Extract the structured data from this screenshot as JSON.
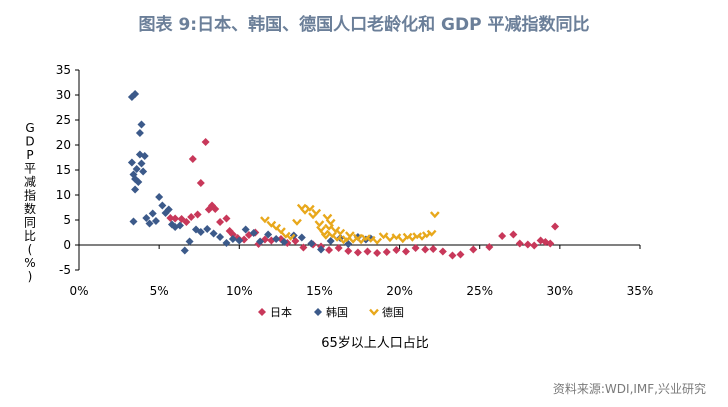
{
  "title": "图表 9:日本、韩国、德国人口老龄化和 GDP 平减指数同比",
  "source": "资料来源:WDI,IMF,兴业研究",
  "chart_data": {
    "type": "scatter",
    "xlabel": "65岁以上人口占比",
    "ylabel": "GDP平减指数同比(%)",
    "xlim": [
      0,
      35
    ],
    "ylim": [
      -5,
      35
    ],
    "x_ticks": [
      0,
      5,
      10,
      15,
      20,
      25,
      30,
      35
    ],
    "x_tick_labels": [
      "0%",
      "5%",
      "10%",
      "15%",
      "20%",
      "25%",
      "30%",
      "35%"
    ],
    "y_ticks": [
      -5,
      0,
      5,
      10,
      15,
      20,
      25,
      30,
      35
    ],
    "y_tick_labels": [
      "-5",
      "0",
      "5",
      "10",
      "15",
      "20",
      "25",
      "30",
      "35"
    ],
    "legend_position": "bottom",
    "series": [
      {
        "name": "日本",
        "color": "#c8385a",
        "marker": "diamond",
        "points": [
          [
            5.7,
            5.4
          ],
          [
            6.0,
            5.3
          ],
          [
            6.4,
            5.2
          ],
          [
            6.7,
            4.6
          ],
          [
            7.0,
            5.6
          ],
          [
            7.1,
            17.2
          ],
          [
            7.4,
            6.1
          ],
          [
            7.6,
            12.4
          ],
          [
            7.9,
            20.6
          ],
          [
            8.1,
            7.1
          ],
          [
            8.3,
            7.9
          ],
          [
            8.5,
            7.2
          ],
          [
            8.8,
            4.6
          ],
          [
            9.2,
            5.3
          ],
          [
            9.4,
            2.8
          ],
          [
            9.6,
            2.1
          ],
          [
            9.9,
            1.4
          ],
          [
            10.3,
            1.1
          ],
          [
            10.6,
            2.0
          ],
          [
            11.0,
            2.5
          ],
          [
            11.2,
            0.2
          ],
          [
            11.6,
            1.1
          ],
          [
            12.0,
            0.9
          ],
          [
            12.6,
            1.2
          ],
          [
            13.0,
            0.4
          ],
          [
            13.5,
            0.8
          ],
          [
            14.0,
            -0.5
          ],
          [
            14.6,
            0.1
          ],
          [
            15.1,
            -0.3
          ],
          [
            15.6,
            -1.0
          ],
          [
            16.2,
            -0.6
          ],
          [
            16.8,
            -1.2
          ],
          [
            17.4,
            -1.5
          ],
          [
            18.0,
            -1.3
          ],
          [
            18.6,
            -1.6
          ],
          [
            19.2,
            -1.4
          ],
          [
            19.8,
            -1.0
          ],
          [
            20.4,
            -1.3
          ],
          [
            21.0,
            -0.6
          ],
          [
            21.6,
            -0.9
          ],
          [
            22.1,
            -0.8
          ],
          [
            22.7,
            -1.3
          ],
          [
            23.3,
            -2.1
          ],
          [
            23.8,
            -1.9
          ],
          [
            24.6,
            -0.9
          ],
          [
            25.6,
            -0.4
          ],
          [
            26.4,
            1.8
          ],
          [
            27.1,
            2.1
          ],
          [
            27.5,
            0.3
          ],
          [
            28.0,
            0.1
          ],
          [
            28.4,
            -0.1
          ],
          [
            28.8,
            0.9
          ],
          [
            29.1,
            0.6
          ],
          [
            29.4,
            0.3
          ],
          [
            29.7,
            3.7
          ]
        ]
      },
      {
        "name": "韩国",
        "color": "#3c5a8a",
        "marker": "diamond",
        "points": [
          [
            3.3,
            29.6
          ],
          [
            3.5,
            30.2
          ],
          [
            3.4,
            4.7
          ],
          [
            3.3,
            16.5
          ],
          [
            3.4,
            14.1
          ],
          [
            3.5,
            13.2
          ],
          [
            3.5,
            11.1
          ],
          [
            3.6,
            15.2
          ],
          [
            3.7,
            12.6
          ],
          [
            3.8,
            22.4
          ],
          [
            3.8,
            18.1
          ],
          [
            3.9,
            24.1
          ],
          [
            3.9,
            16.3
          ],
          [
            4.0,
            14.7
          ],
          [
            4.1,
            17.8
          ],
          [
            4.2,
            5.4
          ],
          [
            4.4,
            4.3
          ],
          [
            4.6,
            6.3
          ],
          [
            4.8,
            4.8
          ],
          [
            5.0,
            9.6
          ],
          [
            5.2,
            7.9
          ],
          [
            5.4,
            6.4
          ],
          [
            5.6,
            7.1
          ],
          [
            5.8,
            4.1
          ],
          [
            6.0,
            3.6
          ],
          [
            6.3,
            3.9
          ],
          [
            6.6,
            -1.1
          ],
          [
            6.9,
            0.7
          ],
          [
            7.3,
            3.1
          ],
          [
            7.6,
            2.6
          ],
          [
            8.0,
            3.2
          ],
          [
            8.4,
            2.3
          ],
          [
            8.8,
            1.6
          ],
          [
            9.2,
            0.4
          ],
          [
            9.6,
            1.2
          ],
          [
            10.0,
            0.9
          ],
          [
            10.4,
            3.1
          ],
          [
            10.9,
            2.4
          ],
          [
            11.3,
            0.7
          ],
          [
            11.8,
            2.1
          ],
          [
            12.3,
            1.2
          ],
          [
            12.8,
            0.6
          ],
          [
            13.4,
            1.9
          ],
          [
            13.9,
            1.5
          ],
          [
            14.5,
            0.3
          ],
          [
            15.1,
            -0.9
          ],
          [
            15.7,
            0.8
          ],
          [
            16.3,
            1.4
          ],
          [
            16.8,
            0.2
          ],
          [
            17.4,
            1.6
          ],
          [
            17.9,
            1.1
          ],
          [
            18.2,
            1.3
          ]
        ]
      },
      {
        "name": "德国",
        "color": "#e8a81c",
        "marker": "chevron",
        "points": [
          [
            11.6,
            5.1
          ],
          [
            12.0,
            4.2
          ],
          [
            12.3,
            3.6
          ],
          [
            12.6,
            2.9
          ],
          [
            12.9,
            2.0
          ],
          [
            13.2,
            1.6
          ],
          [
            13.6,
            4.6
          ],
          [
            13.9,
            7.6
          ],
          [
            14.1,
            6.8
          ],
          [
            14.4,
            7.4
          ],
          [
            14.6,
            5.9
          ],
          [
            14.8,
            6.6
          ],
          [
            15.0,
            4.3
          ],
          [
            15.1,
            3.2
          ],
          [
            15.3,
            2.4
          ],
          [
            15.4,
            1.8
          ],
          [
            15.5,
            5.6
          ],
          [
            15.6,
            3.6
          ],
          [
            15.7,
            4.6
          ],
          [
            15.8,
            2.1
          ],
          [
            16.0,
            3.1
          ],
          [
            16.1,
            1.4
          ],
          [
            16.3,
            2.6
          ],
          [
            16.5,
            0.9
          ],
          [
            16.7,
            1.3
          ],
          [
            16.9,
            2.1
          ],
          [
            17.1,
            1.0
          ],
          [
            17.4,
            1.6
          ],
          [
            17.6,
            0.9
          ],
          [
            17.9,
            1.5
          ],
          [
            18.2,
            1.2
          ],
          [
            18.6,
            0.8
          ],
          [
            19.0,
            1.9
          ],
          [
            19.4,
            1.3
          ],
          [
            19.8,
            1.7
          ],
          [
            20.2,
            1.1
          ],
          [
            20.5,
            1.8
          ],
          [
            20.8,
            1.4
          ],
          [
            21.1,
            1.9
          ],
          [
            21.4,
            1.6
          ],
          [
            21.7,
            2.1
          ],
          [
            22.0,
            2.4
          ],
          [
            22.2,
            6.1
          ]
        ]
      }
    ]
  }
}
